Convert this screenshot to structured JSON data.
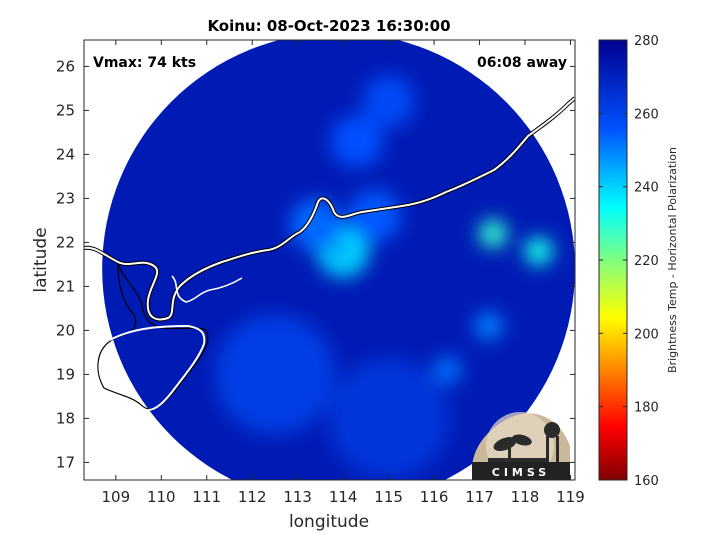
{
  "chart_data": {
    "type": "heatmap",
    "title": "Koinu: 08-Oct-2023 16:30:00",
    "xlabel": "longitude",
    "ylabel": "latitude",
    "xlim": [
      108.3,
      119.1
    ],
    "ylim": [
      16.6,
      26.6
    ],
    "xticks": [
      109,
      110,
      111,
      112,
      113,
      114,
      115,
      116,
      117,
      118,
      119
    ],
    "yticks": [
      17,
      18,
      19,
      20,
      21,
      22,
      23,
      24,
      25,
      26
    ],
    "annotations": {
      "vmax": "Vmax: 74 kts",
      "time_away": "06:08 away"
    },
    "colorbar": {
      "label": "Brightness Temp - Horizontal Polarization",
      "min": 160,
      "max": 280,
      "ticks": [
        160,
        180,
        200,
        220,
        240,
        260,
        280
      ],
      "colormap": [
        "#800000",
        "#ff0000",
        "#ffff00",
        "#00ffff",
        "#0050ff",
        "#00008f"
      ]
    },
    "field": {
      "swath_center": [
        113.9,
        21.4
      ],
      "swath_radius_deg": 5.2,
      "background_value": 272,
      "features": [
        {
          "name": "center",
          "lon": 114.0,
          "lat": 21.8,
          "value": 240
        },
        {
          "name": "band",
          "lon": 113.4,
          "lat": 22.4,
          "value": 253
        },
        {
          "name": "band",
          "lon": 114.7,
          "lat": 22.6,
          "value": 255
        },
        {
          "name": "band",
          "lon": 114.3,
          "lat": 24.3,
          "value": 256
        },
        {
          "name": "band",
          "lon": 115.0,
          "lat": 25.2,
          "value": 258
        },
        {
          "name": "cell",
          "lon": 117.3,
          "lat": 22.2,
          "value": 229
        },
        {
          "name": "cell",
          "lon": 118.3,
          "lat": 21.8,
          "value": 232
        },
        {
          "name": "cell",
          "lon": 117.2,
          "lat": 20.1,
          "value": 250
        },
        {
          "name": "cell",
          "lon": 116.3,
          "lat": 19.1,
          "value": 252
        },
        {
          "name": "ocean",
          "lon": 112.5,
          "lat": 19.0,
          "value": 262
        },
        {
          "name": "ocean",
          "lon": 115.0,
          "lat": 18.0,
          "value": 264
        }
      ]
    }
  },
  "logo": {
    "text": "CIMSS"
  }
}
